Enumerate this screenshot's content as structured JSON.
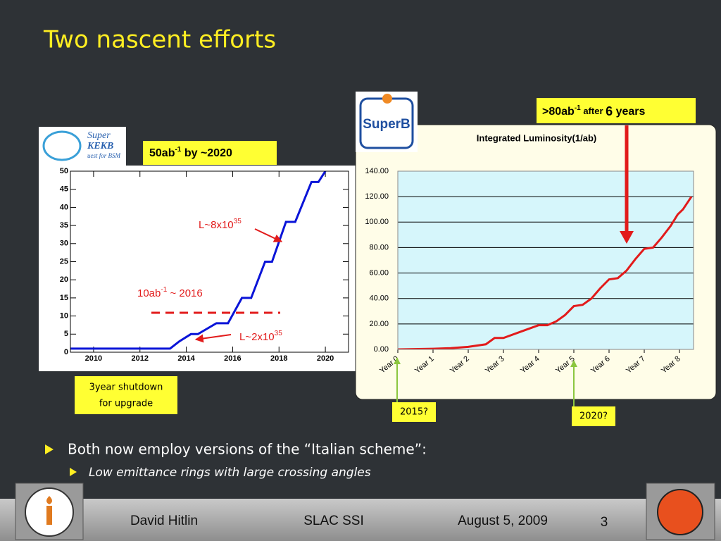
{
  "slide": {
    "title": "Two nascent efforts",
    "bullets": [
      "Both now employ versions of the “Italian scheme”:"
    ],
    "sub_bullets": [
      "Low emittance rings with large crossing angles"
    ],
    "footer": {
      "author": "David Hitlin",
      "venue": "SLAC SSI",
      "date": "August 5, 2009",
      "page": "3"
    }
  },
  "logos": {
    "superkekb": [
      "Super",
      "KEKB",
      "uest for BSM"
    ],
    "superb": "SuperB"
  },
  "annotations": {
    "kekb_goal": {
      "base": "50ab",
      "sup": "-1",
      "rest": " by ~2020"
    },
    "superb_goal": {
      "base": ">80ab",
      "sup": "-1",
      "mid": " after ",
      "num": "6",
      "rest": " years"
    },
    "lum_high": {
      "base": "L~8x10",
      "sup": "35"
    },
    "lum_low": {
      "base": "L~2x10",
      "sup": "35"
    },
    "milestone": {
      "base": "10ab",
      "sup": "-1",
      "rest": " ~ 2016"
    },
    "shutdown": [
      "3year shutdown",
      "for upgrade"
    ],
    "start_2015": "2015?",
    "start_2020": "2020?"
  },
  "chart_data": [
    {
      "type": "line",
      "color": "#0a14d8",
      "x": [
        2009,
        2013.3,
        2013.7,
        2014.2,
        2014.5,
        2015.3,
        2015.8,
        2016.4,
        2016.8,
        2017.4,
        2017.7,
        2018.3,
        2018.7,
        2019.4,
        2019.7,
        2020.0
      ],
      "values": [
        1,
        1,
        3,
        5,
        5,
        8,
        8,
        15,
        15,
        25,
        25,
        36,
        36,
        47,
        47,
        50
      ],
      "xlim": [
        2009,
        2021
      ],
      "ylim": [
        0,
        50
      ],
      "xticks": [
        2010,
        2012,
        2014,
        2016,
        2018,
        2020
      ],
      "yticks": [
        0,
        5,
        10,
        15,
        20,
        25,
        30,
        35,
        40,
        45,
        50
      ],
      "grid": false
    },
    {
      "type": "line",
      "title": "Integrated Luminosity(1/ab)",
      "color": "#e21b1b",
      "x": [
        0,
        1,
        1.5,
        2,
        2.5,
        2.75,
        3,
        3.5,
        4,
        4.25,
        4.5,
        4.75,
        5,
        5.25,
        5.5,
        5.75,
        6,
        6.25,
        6.5,
        6.75,
        7,
        7.25,
        7.5,
        7.75,
        7.95,
        8.1,
        8.34
      ],
      "values": [
        0,
        0.5,
        1,
        2,
        4,
        9,
        9,
        14,
        19,
        19,
        22,
        27,
        34,
        35,
        40,
        48,
        55,
        56,
        62,
        71,
        79,
        80,
        88,
        97,
        106,
        110,
        120
      ],
      "xlim": [
        0,
        8.4
      ],
      "ylim": [
        0,
        140
      ],
      "xticks": [
        {
          "value": 0,
          "label": "Year 0"
        },
        {
          "value": 1,
          "label": "Year 1"
        },
        {
          "value": 2,
          "label": "Year 2"
        },
        {
          "value": 3,
          "label": "Year 3"
        },
        {
          "value": 4,
          "label": "Year 4"
        },
        {
          "value": 5,
          "label": "Year 5"
        },
        {
          "value": 6,
          "label": "Year 6"
        },
        {
          "value": 7,
          "label": "Year 7"
        },
        {
          "value": 8,
          "label": "Year 8"
        }
      ],
      "yticks": [
        {
          "value": 0,
          "label": "0.00"
        },
        {
          "value": 20,
          "label": "20.00"
        },
        {
          "value": 40,
          "label": "40.00"
        },
        {
          "value": 60,
          "label": "60.00"
        },
        {
          "value": 80,
          "label": "80.00"
        },
        {
          "value": 100,
          "label": "100.00"
        },
        {
          "value": 120,
          "label": "120.00"
        },
        {
          "value": 140,
          "label": "140.00"
        }
      ],
      "grid": true
    }
  ]
}
